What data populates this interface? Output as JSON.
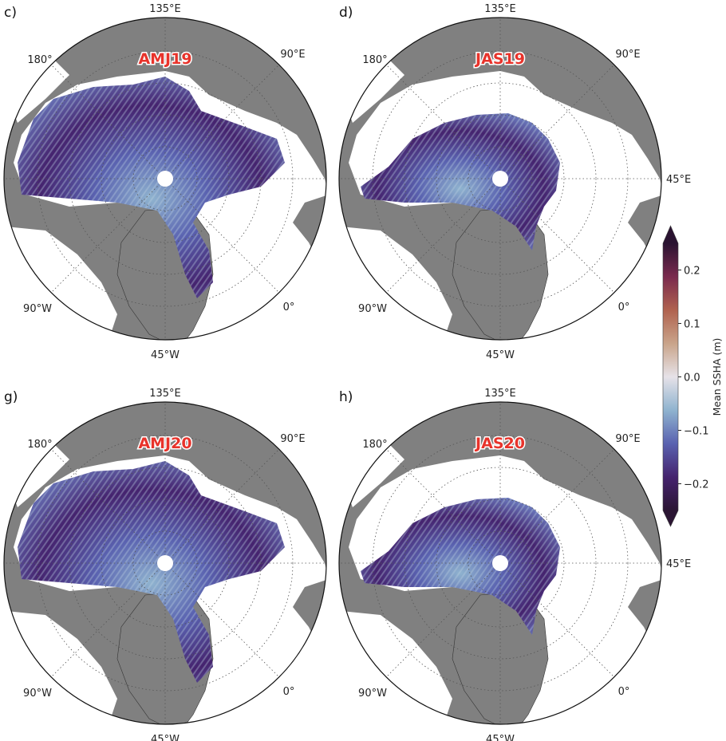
{
  "figure": {
    "panels": [
      {
        "letter": "c)",
        "season": "AMJ19",
        "extent": "full",
        "show_45E": false
      },
      {
        "letter": "d)",
        "season": "JAS19",
        "extent": "reduced",
        "show_45E": true
      },
      {
        "letter": "g)",
        "season": "AMJ20",
        "extent": "full",
        "show_45E": false
      },
      {
        "letter": "h)",
        "season": "JAS20",
        "extent": "reduced",
        "show_45E": true
      }
    ],
    "lon_labels": {
      "lon_135E": "135°E",
      "lon_180": "180°",
      "lon_90E": "90°E",
      "lon_90W": "90°W",
      "lon_0": "0°",
      "lon_45W": "45°W",
      "lon_45E": "45°E"
    },
    "colors": {
      "land": "#808080",
      "ocean": "#ffffff",
      "season_title": "#e8332b"
    }
  },
  "colorbar": {
    "label": "Mean SSHA (m)",
    "range": [
      -0.25,
      0.25
    ],
    "extend": "both",
    "ticks": [
      {
        "value": 0.2,
        "label": "0.2"
      },
      {
        "value": 0.1,
        "label": "0.1"
      },
      {
        "value": 0.0,
        "label": "0.0"
      },
      {
        "value": -0.1,
        "label": "−0.1"
      },
      {
        "value": -0.2,
        "label": "−0.2"
      }
    ],
    "stops": [
      "#2b1533",
      "#45236e",
      "#5a62b0",
      "#8fb3cf",
      "#e6e2e8",
      "#c9a48a",
      "#b0624f",
      "#7a2a4e",
      "#2a1331"
    ]
  }
}
